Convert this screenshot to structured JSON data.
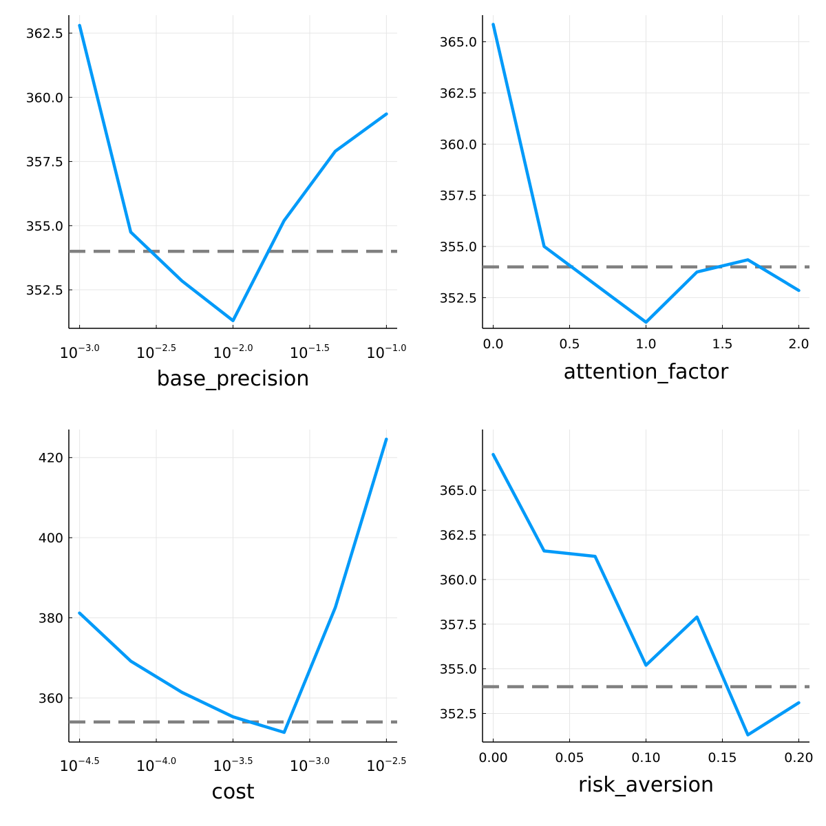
{
  "colors": {
    "series": "#009af9",
    "reference": "#808080",
    "grid": "#e6e6e6",
    "axis": "#000000"
  },
  "chart_data": [
    {
      "type": "line",
      "xlabel": "base_precision",
      "ylabel": "",
      "xscale": "log10",
      "x": [
        0.001,
        0.0021544,
        0.0046416,
        0.01,
        0.021544,
        0.046416,
        0.1
      ],
      "y": [
        362.8,
        354.75,
        352.85,
        351.3,
        355.2,
        357.9,
        359.35
      ],
      "reference_y": 354.0,
      "xlim": [
        -3.07,
        -0.93
      ],
      "ylim": [
        351.0,
        363.2
      ],
      "xticks": [
        {
          "value": -3.0,
          "base": "10",
          "exp": "−3.0"
        },
        {
          "value": -2.5,
          "base": "10",
          "exp": "−2.5"
        },
        {
          "value": -2.0,
          "base": "10",
          "exp": "−2.0"
        },
        {
          "value": -1.5,
          "base": "10",
          "exp": "−1.5"
        },
        {
          "value": -1.0,
          "base": "10",
          "exp": "−1.0"
        }
      ],
      "yticks": [
        {
          "value": 352.5,
          "label": "352.5"
        },
        {
          "value": 355.0,
          "label": "355.0"
        },
        {
          "value": 357.5,
          "label": "357.5"
        },
        {
          "value": 360.0,
          "label": "360.0"
        },
        {
          "value": 362.5,
          "label": "362.5"
        }
      ],
      "grid": true,
      "legend": "none"
    },
    {
      "type": "line",
      "xlabel": "attention_factor",
      "ylabel": "",
      "xscale": "linear",
      "x": [
        0.0,
        0.3333,
        0.6667,
        1.0,
        1.3333,
        1.6667,
        2.0
      ],
      "y": [
        365.85,
        355.0,
        353.15,
        351.3,
        353.75,
        354.35,
        352.85
      ],
      "reference_y": 354.0,
      "xlim": [
        -0.07,
        2.07
      ],
      "ylim": [
        351.0,
        366.3
      ],
      "xticks": [
        {
          "value": 0.0,
          "label": "0.0"
        },
        {
          "value": 0.5,
          "label": "0.5"
        },
        {
          "value": 1.0,
          "label": "1.0"
        },
        {
          "value": 1.5,
          "label": "1.5"
        },
        {
          "value": 2.0,
          "label": "2.0"
        }
      ],
      "yticks": [
        {
          "value": 352.5,
          "label": "352.5"
        },
        {
          "value": 355.0,
          "label": "355.0"
        },
        {
          "value": 357.5,
          "label": "357.5"
        },
        {
          "value": 360.0,
          "label": "360.0"
        },
        {
          "value": 362.5,
          "label": "362.5"
        },
        {
          "value": 365.0,
          "label": "365.0"
        }
      ],
      "grid": true,
      "legend": "none"
    },
    {
      "type": "line",
      "xlabel": "cost",
      "ylabel": "",
      "xscale": "log10",
      "x": [
        3.16e-05,
        6.81e-05,
        0.000147,
        0.000316,
        0.000681,
        0.00147,
        0.00316
      ],
      "y": [
        381.2,
        369.2,
        361.4,
        355.3,
        351.4,
        382.6,
        424.6
      ],
      "reference_y": 354.0,
      "xlim": [
        -4.57,
        -2.43
      ],
      "ylim": [
        349.0,
        427.0
      ],
      "xticks": [
        {
          "value": -4.5,
          "base": "10",
          "exp": "−4.5"
        },
        {
          "value": -4.0,
          "base": "10",
          "exp": "−4.0"
        },
        {
          "value": -3.5,
          "base": "10",
          "exp": "−3.5"
        },
        {
          "value": -3.0,
          "base": "10",
          "exp": "−3.0"
        },
        {
          "value": -2.5,
          "base": "10",
          "exp": "−2.5"
        }
      ],
      "yticks": [
        {
          "value": 360,
          "label": "360"
        },
        {
          "value": 380,
          "label": "380"
        },
        {
          "value": 400,
          "label": "400"
        },
        {
          "value": 420,
          "label": "420"
        }
      ],
      "grid": true,
      "legend": "none"
    },
    {
      "type": "line",
      "xlabel": "risk_aversion",
      "ylabel": "",
      "xscale": "linear",
      "x": [
        0.0,
        0.03333,
        0.06667,
        0.1,
        0.13333,
        0.16667,
        0.2
      ],
      "y": [
        367.0,
        361.6,
        361.3,
        355.2,
        357.9,
        351.3,
        353.1
      ],
      "reference_y": 354.0,
      "xlim": [
        -0.007,
        0.207
      ],
      "ylim": [
        350.9,
        368.4
      ],
      "xticks": [
        {
          "value": 0.0,
          "label": "0.00"
        },
        {
          "value": 0.05,
          "label": "0.05"
        },
        {
          "value": 0.1,
          "label": "0.10"
        },
        {
          "value": 0.15,
          "label": "0.15"
        },
        {
          "value": 0.2,
          "label": "0.20"
        }
      ],
      "yticks": [
        {
          "value": 352.5,
          "label": "352.5"
        },
        {
          "value": 355.0,
          "label": "355.0"
        },
        {
          "value": 357.5,
          "label": "357.5"
        },
        {
          "value": 360.0,
          "label": "360.0"
        },
        {
          "value": 362.5,
          "label": "362.5"
        },
        {
          "value": 365.0,
          "label": "365.0"
        }
      ],
      "grid": true,
      "legend": "none"
    }
  ]
}
